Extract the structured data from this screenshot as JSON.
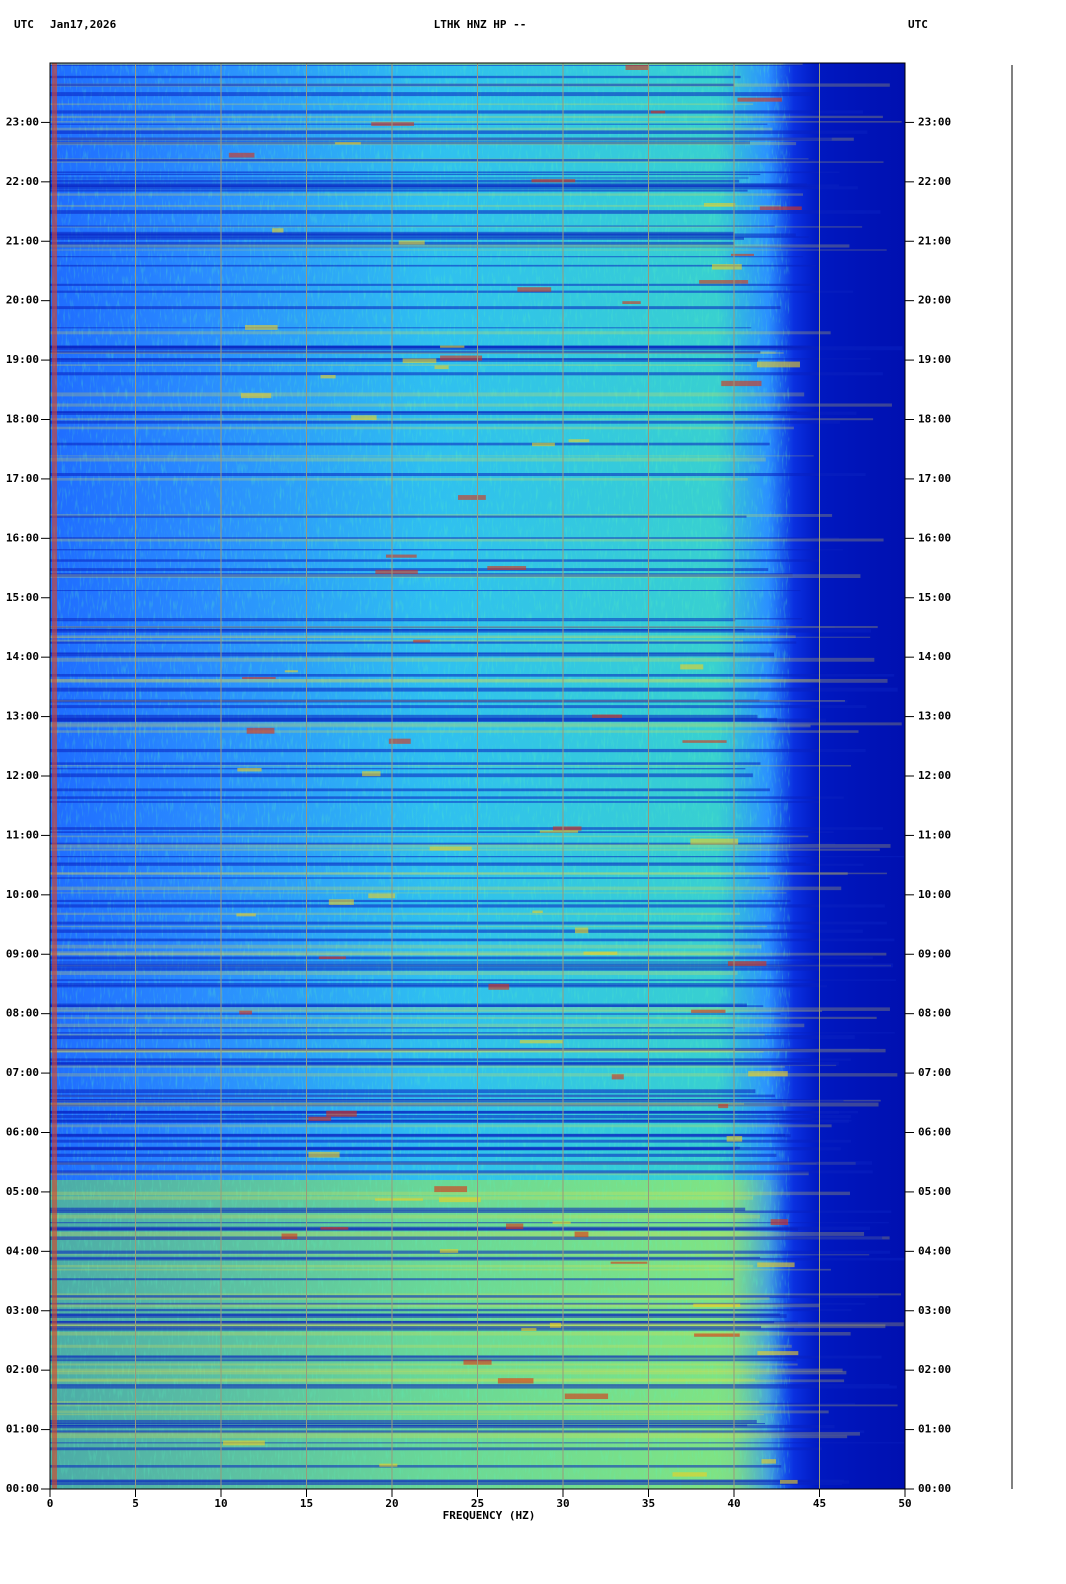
{
  "chart_data": {
    "type": "spectrogram",
    "timezone_left": "UTC",
    "date": "Jan17,2026",
    "title": "LTHK HNZ HP --",
    "timezone_right": "UTC",
    "xlabel": "FREQUENCY (HZ)",
    "xlim": [
      0,
      50
    ],
    "xticks": [
      0,
      5,
      10,
      15,
      20,
      25,
      30,
      35,
      40,
      45,
      50
    ],
    "ylim": [
      0,
      24
    ],
    "yticks": [
      {
        "value": 0,
        "label": "00:00"
      },
      {
        "value": 1,
        "label": "01:00"
      },
      {
        "value": 2,
        "label": "02:00"
      },
      {
        "value": 3,
        "label": "03:00"
      },
      {
        "value": 4,
        "label": "04:00"
      },
      {
        "value": 5,
        "label": "05:00"
      },
      {
        "value": 6,
        "label": "06:00"
      },
      {
        "value": 7,
        "label": "07:00"
      },
      {
        "value": 8,
        "label": "08:00"
      },
      {
        "value": 9,
        "label": "09:00"
      },
      {
        "value": 10,
        "label": "10:00"
      },
      {
        "value": 11,
        "label": "11:00"
      },
      {
        "value": 12,
        "label": "12:00"
      },
      {
        "value": 13,
        "label": "13:00"
      },
      {
        "value": 14,
        "label": "14:00"
      },
      {
        "value": 15,
        "label": "15:00"
      },
      {
        "value": 16,
        "label": "16:00"
      },
      {
        "value": 17,
        "label": "17:00"
      },
      {
        "value": 18,
        "label": "18:00"
      },
      {
        "value": 19,
        "label": "19:00"
      },
      {
        "value": 20,
        "label": "20:00"
      },
      {
        "value": 21,
        "label": "21:00"
      },
      {
        "value": 22,
        "label": "22:00"
      },
      {
        "value": 23,
        "label": "23:00"
      }
    ],
    "grid": true,
    "grid_color": "#9a9a7a"
  }
}
